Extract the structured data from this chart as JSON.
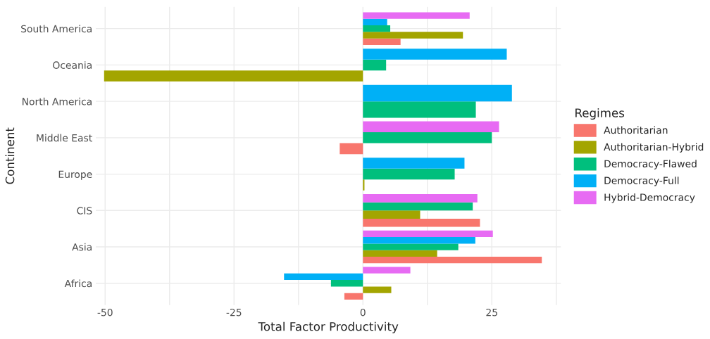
{
  "chart_data": {
    "type": "bar",
    "orientation": "horizontal",
    "xlabel": "Total Factor Productivity",
    "ylabel": "Continent",
    "legend_title": "Regimes",
    "legend": "right",
    "grid": true,
    "categories": [
      "South America",
      "Oceania",
      "North America",
      "Middle East",
      "Europe",
      "CIS",
      "Asia",
      "Africa"
    ],
    "xlim": [
      -51.8,
      38.4
    ],
    "xticks": [
      -50,
      {
        "value": -37.5,
        "label": null
      },
      -25,
      {
        "value": -12.5,
        "label": null
      },
      0,
      {
        "value": 12.5,
        "label": null
      },
      25,
      {
        "value": 37.5,
        "label": null
      }
    ],
    "series": [
      {
        "name": "Authoritarian",
        "color": "#f8766d",
        "values": [
          7.3,
          null,
          null,
          -4.5,
          null,
          22.7,
          34.7,
          -3.6
        ]
      },
      {
        "name": "Authoritarian-Hybrid",
        "color": "#a3a500",
        "values": [
          19.4,
          -50.2,
          null,
          null,
          0.3,
          11.1,
          14.4,
          5.5
        ]
      },
      {
        "name": "Democracy-Flawed",
        "color": "#00bf7d",
        "values": [
          5.3,
          4.5,
          21.9,
          25.0,
          17.8,
          21.3,
          18.5,
          -6.2
        ]
      },
      {
        "name": "Democracy-Full",
        "color": "#00b0f6",
        "values": [
          4.7,
          27.9,
          28.9,
          null,
          19.7,
          null,
          21.8,
          -15.3
        ]
      },
      {
        "name": "Hybrid-Democracy",
        "color": "#e76bf3",
        "values": [
          20.7,
          null,
          null,
          26.4,
          null,
          22.2,
          25.2,
          9.2
        ]
      }
    ]
  }
}
